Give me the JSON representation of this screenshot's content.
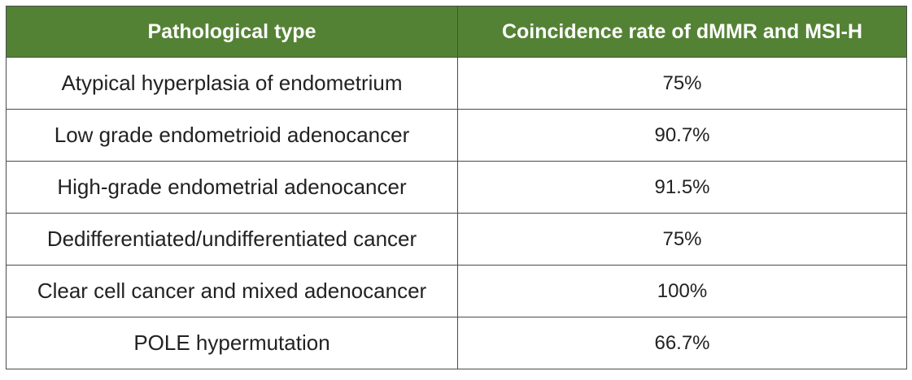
{
  "table": {
    "header_fill_color": "#548235",
    "columns": [
      "Pathological type",
      "Coincidence rate of dMMR and MSI-H"
    ],
    "rows": [
      {
        "type": "Atypical hyperplasia of endometrium",
        "rate": "75%"
      },
      {
        "type": "Low grade endometrioid adenocancer",
        "rate": "90.7%"
      },
      {
        "type": "High-grade endometrial adenocancer",
        "rate": "91.5%"
      },
      {
        "type": "Dedifferentiated/undifferentiated cancer",
        "rate": "75%"
      },
      {
        "type": "Clear cell cancer and mixed adenocancer",
        "rate": "100%"
      },
      {
        "type": "POLE hypermutation",
        "rate": "66.7%"
      }
    ]
  }
}
